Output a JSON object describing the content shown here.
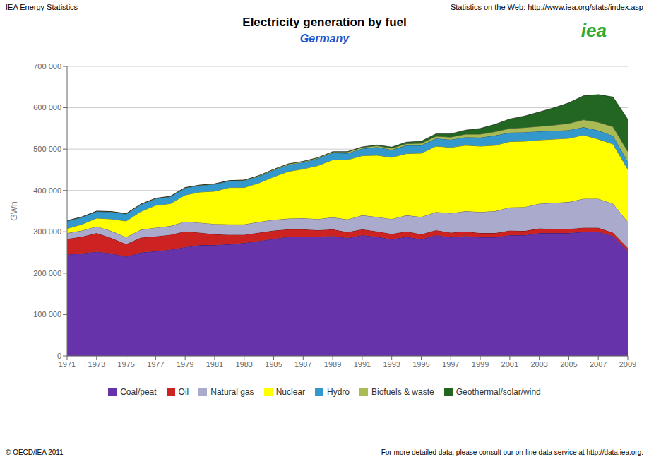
{
  "chart_data": {
    "type": "area",
    "stacked": true,
    "title": "Electricity generation by fuel",
    "subtitle": "Germany",
    "y_label": "GWh",
    "annotations": [
      "IEA Energy Statistics",
      "Statistics on the Web: http://www.iea.org/stats/index.asp",
      "© OECD/IEA 2011",
      "For more detailed data, please consult our on-line data service at http://data.iea.org.",
      "iea"
    ],
    "x": [
      1971,
      1972,
      1973,
      1974,
      1975,
      1976,
      1977,
      1978,
      1979,
      1980,
      1981,
      1982,
      1983,
      1984,
      1985,
      1986,
      1987,
      1988,
      1989,
      1990,
      1991,
      1992,
      1993,
      1994,
      1995,
      1996,
      1997,
      1998,
      1999,
      2000,
      2001,
      2002,
      2003,
      2004,
      2005,
      2006,
      2007,
      2008,
      2009
    ],
    "series": [
      {
        "name": "Coal/peat",
        "color": "#6633AA",
        "values": [
          245000,
          248000,
          252000,
          248000,
          240000,
          250000,
          253000,
          257000,
          263000,
          268000,
          268000,
          270000,
          273000,
          278000,
          283000,
          288000,
          288000,
          288000,
          290000,
          285000,
          292000,
          288000,
          282000,
          288000,
          282000,
          292000,
          287000,
          290000,
          287000,
          287000,
          292000,
          292000,
          297000,
          297000,
          297000,
          300000,
          300000,
          290000,
          255000
        ]
      },
      {
        "name": "Oil",
        "color": "#CC2222",
        "values": [
          38000,
          40000,
          45000,
          37000,
          30000,
          36000,
          36000,
          36000,
          38000,
          30000,
          26000,
          23000,
          20000,
          20000,
          20000,
          18000,
          18000,
          16000,
          16000,
          14000,
          14000,
          13000,
          13000,
          13000,
          12000,
          12000,
          11000,
          11000,
          10000,
          10000,
          11000,
          10000,
          11000,
          10000,
          10000,
          10000,
          10000,
          8000,
          6000
        ]
      },
      {
        "name": "Natural gas",
        "color": "#AAAACC",
        "values": [
          14000,
          15000,
          16000,
          17000,
          17000,
          19000,
          21000,
          21000,
          24000,
          24000,
          25000,
          25000,
          25000,
          26000,
          26000,
          26000,
          27000,
          27000,
          29000,
          31000,
          34000,
          35000,
          36000,
          39000,
          42000,
          44000,
          47000,
          49000,
          51000,
          53000,
          56000,
          58000,
          60000,
          63000,
          65000,
          70000,
          70000,
          70000,
          63000
        ]
      },
      {
        "name": "Nuclear",
        "color": "#FFFF00",
        "values": [
          11000,
          15000,
          20000,
          29000,
          39000,
          44000,
          54000,
          54000,
          64000,
          74000,
          79000,
          89000,
          89000,
          94000,
          104000,
          114000,
          119000,
          129000,
          139000,
          144000,
          144000,
          149000,
          149000,
          149000,
          154000,
          159000,
          159000,
          159000,
          159000,
          159000,
          159000,
          159000,
          154000,
          154000,
          154000,
          154000,
          144000,
          144000,
          127000
        ]
      },
      {
        "name": "Hydro",
        "color": "#3399CC",
        "values": [
          18000,
          17000,
          16000,
          17000,
          17000,
          17000,
          16000,
          17000,
          17000,
          16000,
          17000,
          16000,
          17000,
          16000,
          16000,
          16000,
          16000,
          17000,
          17000,
          16000,
          17000,
          20000,
          18000,
          20000,
          19000,
          19000,
          19000,
          20000,
          21000,
          24000,
          22000,
          22000,
          21000,
          20000,
          20000,
          19000,
          21000,
          20000,
          19000
        ]
      },
      {
        "name": "Biofuels & waste",
        "color": "#AABB55",
        "values": [
          1000,
          1000,
          1000,
          1000,
          1000,
          1000,
          1000,
          1000,
          1000,
          1000,
          1000,
          1000,
          1000,
          2000,
          2000,
          2000,
          2000,
          2000,
          2000,
          3000,
          3000,
          3000,
          4000,
          4000,
          5000,
          5000,
          6000,
          7000,
          8000,
          9000,
          10000,
          11000,
          12000,
          14000,
          16000,
          18000,
          20000,
          22000,
          24000
        ]
      },
      {
        "name": "Geothermal/solar/wind",
        "color": "#226622",
        "values": [
          0,
          0,
          0,
          0,
          0,
          0,
          0,
          0,
          0,
          0,
          0,
          0,
          0,
          0,
          0,
          500,
          500,
          500,
          1000,
          1000,
          1500,
          2000,
          3000,
          4000,
          5000,
          6000,
          8000,
          10000,
          14000,
          18000,
          23000,
          28000,
          35000,
          42000,
          50000,
          58000,
          67000,
          72000,
          78000
        ]
      }
    ],
    "xlim": [
      1971,
      2009
    ],
    "xticks": [
      1971,
      1973,
      1975,
      1977,
      1979,
      1981,
      1983,
      1985,
      1987,
      1989,
      1991,
      1993,
      1995,
      1997,
      1999,
      2001,
      2003,
      2005,
      2007,
      2009
    ],
    "ylim": [
      0,
      700000
    ],
    "yticks": [
      0,
      {
        "value": 100000,
        "label": "100 000"
      },
      {
        "value": 200000,
        "label": "200 000"
      },
      {
        "value": 300000,
        "label": "300 000"
      },
      {
        "value": 400000,
        "label": "400 000"
      },
      {
        "value": 500000,
        "label": "500 000"
      },
      {
        "value": 600000,
        "label": "600 000"
      },
      {
        "value": 700000,
        "label": "700 000"
      }
    ],
    "grid": "y",
    "legend": "bottom"
  }
}
